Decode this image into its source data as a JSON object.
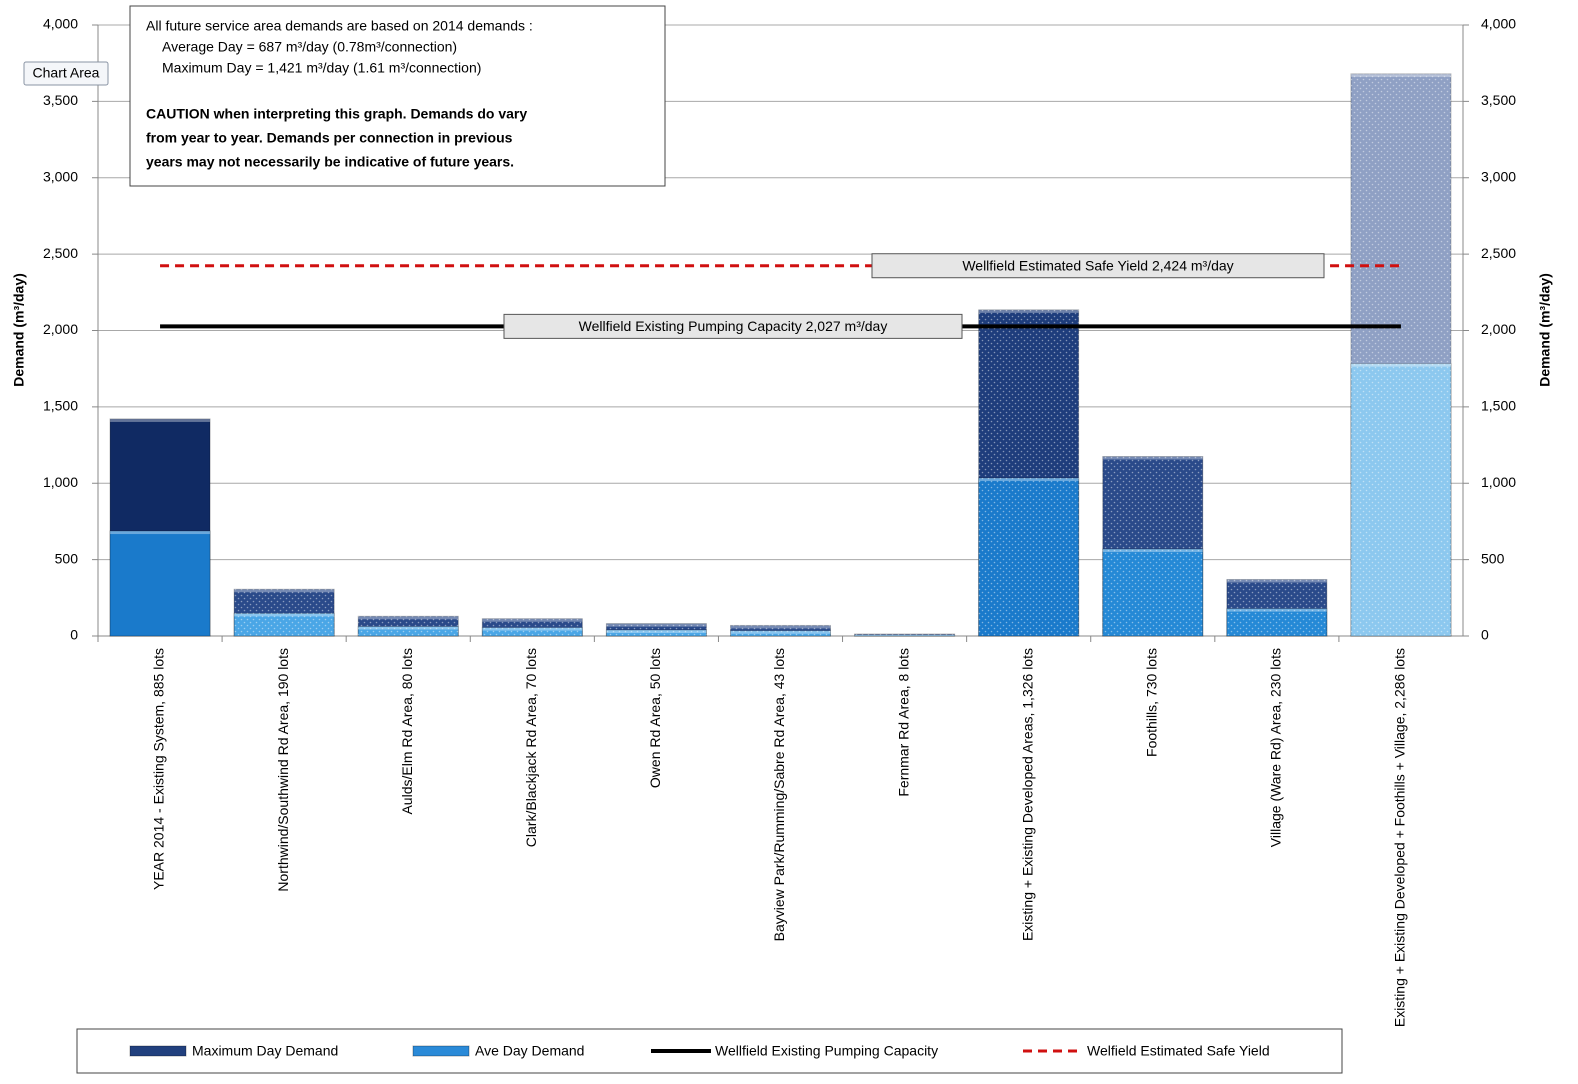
{
  "chart_data": {
    "type": "bar",
    "tooltip": "Chart Area",
    "ylabel": "Demand (m³/day)",
    "y2label": "Demand (m³/day)",
    "ylim": [
      0,
      4000
    ],
    "yticks": [
      0,
      500,
      {
        "value": 1000,
        "label": "1,000"
      },
      {
        "value": 1500,
        "label": "1,500"
      },
      {
        "value": 2000,
        "label": "2,000"
      },
      {
        "value": 2500,
        "label": "2,500"
      },
      {
        "value": 3000,
        "label": "3,000"
      },
      {
        "value": 3500,
        "label": "3,500"
      },
      {
        "value": 4000,
        "label": "4,000"
      }
    ],
    "y2lim": [
      0,
      4000
    ],
    "y2ticks": [
      0,
      500,
      {
        "value": 1000,
        "label": "1,000"
      },
      {
        "value": 1500,
        "label": "1,500"
      },
      {
        "value": 2000,
        "label": "2,000"
      },
      {
        "value": 2500,
        "label": "2,500"
      },
      {
        "value": 3000,
        "label": "3,000"
      },
      {
        "value": 3500,
        "label": "3,500"
      },
      {
        "value": 4000,
        "label": "4,000"
      }
    ],
    "grid": true,
    "categories": [
      "YEAR 2014  -  Existing System, 885 lots",
      "Northwind/Southwind Rd Area, 190 lots",
      "Aulds/Elm Rd Area, 80 lots",
      "Clark/Blackjack Rd Area, 70 lots",
      "Owen Rd Area, 50 lots",
      "Bayview Park/Rumming/Sabre Rd Area, 43 lots",
      "Fernmar Rd Area, 8 lots",
      "Existing + Existing Developed Areas, 1,326 lots",
      "Foothills, 730 lots",
      "Village (Ware Rd) Area, 230 lots",
      "Existing + Existing Developed + Foothills + Village, 2,286 lots"
    ],
    "series": [
      {
        "name": "Maximum Day Demand",
        "color": "#21407e",
        "colors": [
          "#102a63",
          "#2a4a8a",
          "#2a4a8a",
          "#2a4a8a",
          "#2a4a8a",
          "#2a4a8a",
          "#2a4a8a",
          "#1e3d7c",
          "#2a4a8a",
          "#2a4a8a",
          "#8fa0c4"
        ],
        "values": [
          1421,
          306,
          129,
          113,
          81,
          69,
          13,
          2135,
          1175,
          370,
          3680
        ]
      },
      {
        "name": "Ave Day Demand",
        "color": "#2a8ad8",
        "colors": [
          "#1a7acb",
          "#4aa6e6",
          "#4aa6e6",
          "#4aa6e6",
          "#4aa6e6",
          "#4aa6e6",
          "#4aa6e6",
          "#1a7acb",
          "#2589d6",
          "#2589d6",
          "#8cc8ef"
        ],
        "values": [
          687,
          148,
          62,
          55,
          39,
          34,
          6,
          1034,
          569,
          179,
          1783
        ]
      }
    ],
    "reference_lines": [
      {
        "name": "Wellfield Existing Pumping Capacity",
        "color": "#000000",
        "dashed": false,
        "value": 2027,
        "label": "Wellfield  Existing  Pumping  Capacity      2,027 m³/day"
      },
      {
        "name": "Welfield Estimated Safe Yield",
        "color": "#d01010",
        "dashed": true,
        "value": 2424,
        "label": "Wellfield  Estimated Safe Yield    2,424 m³/day"
      }
    ],
    "note": {
      "lines": [
        "All future service area demands  are based  on 2014 demands  :",
        "Average Day        =      687 m³/day  (0.78m³/connection)",
        "Maximum  Day     = 1,421 m³/day  (1.61 m³/connection)"
      ],
      "caution": [
        "CAUTION when interpreting this graph.  Demands do vary",
        "from year to year.  Demands per connection in previous",
        "years may not necessarily be indicative of future years."
      ]
    }
  }
}
